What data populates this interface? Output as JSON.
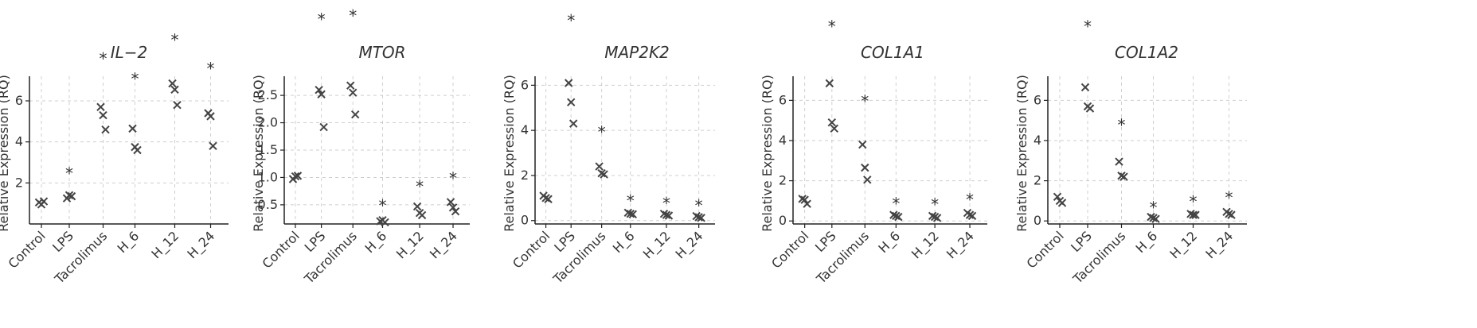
{
  "chart_data": [
    {
      "type": "scatter",
      "title": "IL−2",
      "ylabel": "Relative Expression (RQ)",
      "categories": [
        "Control",
        "LPS",
        "Tacrolimus",
        "H_6",
        "H_12",
        "H_24"
      ],
      "ylim": [
        0,
        7.2
      ],
      "yticks": [
        2,
        4,
        6
      ],
      "points": [
        [
          1.05,
          0.95,
          1.1
        ],
        [
          1.25,
          1.4,
          1.35
        ],
        [
          5.7,
          5.3,
          4.6
        ],
        [
          4.65,
          3.75,
          3.6
        ],
        [
          6.85,
          6.55,
          5.8
        ],
        [
          5.4,
          5.25,
          3.8
        ]
      ],
      "significance": [
        "",
        "*",
        "*",
        "*",
        "*",
        "*"
      ],
      "sig_y": [
        null,
        2.5,
        8.1,
        7.1,
        9.0,
        7.6
      ]
    },
    {
      "type": "scatter",
      "title": "MTOR",
      "ylabel": "Relative Expression (RQ)",
      "categories": [
        "Control",
        "LPS",
        "Tacrolimus",
        "H_6",
        "H_12",
        "H_24"
      ],
      "ylim": [
        0.15,
        2.85
      ],
      "yticks": [
        0.5,
        1.0,
        1.5,
        2.0,
        2.5
      ],
      "ytick_labels": [
        "0.5",
        "1.0",
        "1.5",
        "2.0",
        "2.5"
      ],
      "points": [
        [
          0.97,
          1.02,
          1.03
        ],
        [
          2.6,
          2.52,
          1.92
        ],
        [
          2.68,
          2.55,
          2.15
        ],
        [
          0.2,
          0.22,
          0.18
        ],
        [
          0.47,
          0.35,
          0.31
        ],
        [
          0.55,
          0.45,
          0.38
        ]
      ],
      "significance": [
        "",
        "*",
        "*",
        "*",
        "*",
        "*"
      ],
      "sig_y": [
        null,
        3.9,
        3.97,
        0.5,
        0.85,
        1.0
      ]
    },
    {
      "type": "scatter",
      "title": "MAP2K2",
      "ylabel": "Relative Expression (RQ)",
      "categories": [
        "Control",
        "LPS",
        "Tacrolimus",
        "H_6",
        "H_12",
        "H_24"
      ],
      "ylim": [
        -0.15,
        6.4
      ],
      "yticks": [
        0,
        2,
        4,
        6
      ],
      "points": [
        [
          1.1,
          1.0,
          0.95
        ],
        [
          6.1,
          5.25,
          4.3
        ],
        [
          2.4,
          2.1,
          2.05
        ],
        [
          0.35,
          0.3,
          0.28
        ],
        [
          0.3,
          0.25,
          0.22
        ],
        [
          0.2,
          0.15,
          0.12
        ]
      ],
      "significance": [
        "",
        "*",
        "*",
        "*",
        "*",
        "*"
      ],
      "sig_y": [
        null,
        8.9,
        3.95,
        0.9,
        0.8,
        0.7
      ]
    },
    {
      "type": "scatter",
      "title": "COL1A1",
      "ylabel": "Relative Expression (RQ)",
      "categories": [
        "Control",
        "LPS",
        "Tacrolimus",
        "H_6",
        "H_12",
        "H_24"
      ],
      "ylim": [
        -0.15,
        7.2
      ],
      "yticks": [
        0,
        2,
        4,
        6
      ],
      "points": [
        [
          1.1,
          1.05,
          0.85
        ],
        [
          6.85,
          4.9,
          4.6
        ],
        [
          3.8,
          2.65,
          2.05
        ],
        [
          0.3,
          0.25,
          0.2
        ],
        [
          0.25,
          0.2,
          0.15
        ],
        [
          0.4,
          0.3,
          0.25
        ]
      ],
      "significance": [
        "",
        "*",
        "*",
        "*",
        "*",
        "*"
      ],
      "sig_y": [
        null,
        9.7,
        6.0,
        0.9,
        0.85,
        1.1
      ]
    },
    {
      "type": "scatter",
      "title": "COL1A2",
      "ylabel": "Relative Expression (RQ)",
      "categories": [
        "Control",
        "LPS",
        "Tacrolimus",
        "H_6",
        "H_12",
        "H_24"
      ],
      "ylim": [
        -0.15,
        7.2
      ],
      "yticks": [
        0,
        2,
        4,
        6
      ],
      "points": [
        [
          1.2,
          1.0,
          0.9
        ],
        [
          6.65,
          5.7,
          5.6
        ],
        [
          2.95,
          2.25,
          2.2
        ],
        [
          0.2,
          0.15,
          0.1
        ],
        [
          0.35,
          0.3,
          0.3
        ],
        [
          0.45,
          0.35,
          0.3
        ]
      ],
      "significance": [
        "",
        "*",
        "*",
        "*",
        "*",
        "*"
      ],
      "sig_y": [
        null,
        9.7,
        4.8,
        0.7,
        1.0,
        1.2
      ]
    }
  ]
}
